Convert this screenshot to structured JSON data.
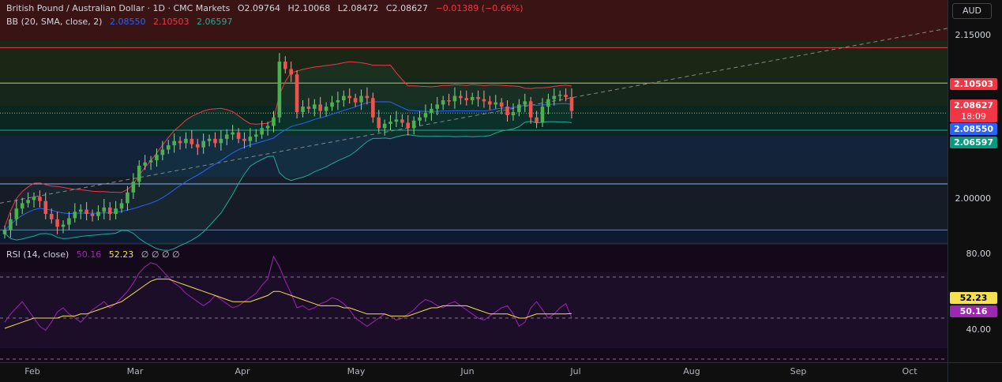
{
  "header": {
    "symbol": "British Pound / Australian Dollar · 1D · CMC Markets",
    "open": "O2.09764",
    "high": "H2.10068",
    "low": "L2.08472",
    "close": "C2.08627",
    "change": "−0.01389 (−0.66%)",
    "bb_label": "BB (20, SMA, close, 2)",
    "bb_mid": "2.08550",
    "bb_upper": "2.10503",
    "bb_lower": "2.06597",
    "rsi_label": "RSI (14, close)",
    "rsi_value": "50.16",
    "rsi_ma": "52.23",
    "rsi_extra": "∅ ∅ ∅ ∅"
  },
  "currency": "AUD",
  "price_tags": {
    "upper": "2.10503",
    "close": "2.08627",
    "countdown": "18:09",
    "mid": "2.08550",
    "lower": "2.06597",
    "rsi_ma": "52.23",
    "rsi": "50.16"
  },
  "colors": {
    "up": "#26a69a",
    "down": "#ef5350",
    "bb_upper": "#f23645",
    "bb_mid": "#2962ff",
    "bb_lower": "#22ab94",
    "rsi": "#9c27b0",
    "rsi_ma": "#f5e050"
  },
  "chart_data": {
    "type": "candlestick",
    "price_axis_ticks": [
      "2.15000",
      "2.00000"
    ],
    "rsi_axis_ticks": [
      "80.00",
      "40.00"
    ],
    "x_labels": [
      "Feb",
      "Mar",
      "Apr",
      "May",
      "Jun",
      "Jul",
      "Aug",
      "Sep",
      "Oct"
    ],
    "price_range": [
      1.965,
      2.16
    ],
    "horizontal_levels": [
      2.145,
      2.112,
      2.084,
      2.068,
      2.018,
      1.975
    ],
    "closes": [
      1.975,
      1.985,
      1.995,
      2.0,
      2.003,
      2.006,
      2.002,
      1.99,
      1.985,
      1.978,
      1.98,
      1.986,
      1.992,
      1.994,
      1.99,
      1.988,
      1.992,
      1.996,
      1.99,
      1.995,
      2.0,
      2.01,
      2.02,
      2.035,
      2.038,
      2.04,
      2.045,
      2.05,
      2.054,
      2.058,
      2.056,
      2.06,
      2.055,
      2.052,
      2.058,
      2.06,
      2.056,
      2.06,
      2.064,
      2.066,
      2.06,
      2.058,
      2.062,
      2.064,
      2.07,
      2.072,
      2.08,
      2.132,
      2.125,
      2.12,
      2.085,
      2.09,
      2.088,
      2.092,
      2.086,
      2.09,
      2.094,
      2.096,
      2.1,
      2.098,
      2.094,
      2.1,
      2.098,
      2.08,
      2.07,
      2.074,
      2.076,
      2.078,
      2.075,
      2.07,
      2.077,
      2.08,
      2.084,
      2.088,
      2.092,
      2.096,
      2.095,
      2.1,
      2.098,
      2.096,
      2.099,
      2.097,
      2.095,
      2.092,
      2.094,
      2.09,
      2.082,
      2.085,
      2.092,
      2.095,
      2.08,
      2.075,
      2.09,
      2.097,
      2.1,
      2.101,
      2.099,
      2.086
    ],
    "rsi_range": [
      30,
      85
    ],
    "rsi_levels": [
      70,
      50,
      30
    ],
    "rsi": [
      48,
      52,
      55,
      58,
      54,
      50,
      46,
      44,
      48,
      53,
      55,
      52,
      50,
      48,
      51,
      54,
      56,
      58,
      55,
      57,
      60,
      63,
      67,
      72,
      75,
      77,
      76,
      73,
      70,
      67,
      65,
      62,
      60,
      58,
      56,
      58,
      61,
      59,
      57,
      55,
      56,
      58,
      60,
      62,
      66,
      69,
      80,
      75,
      68,
      62,
      55,
      56,
      54,
      55,
      57,
      58,
      60,
      59,
      57,
      54,
      50,
      48,
      46,
      48,
      50,
      52,
      51,
      49,
      50,
      52,
      54,
      57,
      59,
      58,
      56,
      55,
      57,
      58,
      56,
      54,
      52,
      50,
      49,
      51,
      53,
      55,
      56,
      52,
      46,
      48,
      55,
      58,
      54,
      50,
      52,
      55,
      57,
      50.16
    ],
    "rsi_ma": [
      45,
      46,
      47,
      48,
      49,
      50,
      50,
      50,
      50,
      50,
      51,
      51,
      51,
      52,
      52,
      53,
      54,
      55,
      56,
      57,
      58,
      60,
      62,
      64,
      66,
      68,
      69,
      69,
      69,
      68,
      67,
      66,
      65,
      64,
      63,
      62,
      61,
      60,
      59,
      58,
      58,
      58,
      58,
      59,
      60,
      61,
      63,
      63,
      62,
      61,
      60,
      59,
      58,
      57,
      56,
      56,
      56,
      56,
      55,
      55,
      54,
      53,
      52,
      52,
      52,
      52,
      51,
      51,
      51,
      51,
      52,
      53,
      54,
      55,
      55,
      56,
      56,
      56,
      56,
      56,
      55,
      54,
      53,
      52,
      52,
      52,
      52,
      51,
      50,
      50,
      51,
      52,
      52,
      52,
      52,
      52,
      52,
      52.23
    ]
  }
}
